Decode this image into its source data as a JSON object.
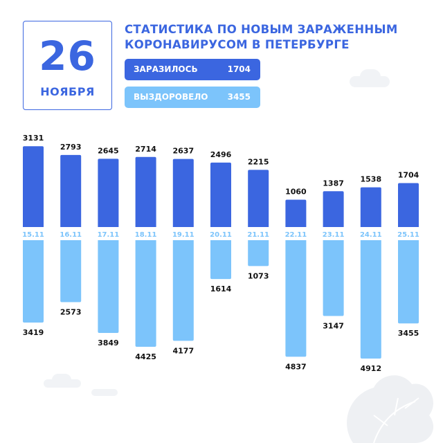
{
  "date": {
    "day": "26",
    "month": "НОЯБРЯ"
  },
  "title": "СТАТИСТИКА ПО НОВЫМ ЗАРАЖЕННЫМ КОРОНАВИРУСОМ В ПЕТЕРБУРГЕ",
  "legend": {
    "infected": {
      "label": "ЗАРАЗИЛОСЬ",
      "value": "1704"
    },
    "recovered": {
      "label": "ВЫЗДОРОВЕЛО",
      "value": "3455"
    }
  },
  "colors": {
    "infected": "#3b66e0",
    "recovered": "#7cc4fb",
    "date_label": "#3b66e0",
    "text": "#111111"
  },
  "chart_data": {
    "type": "bar",
    "categories": [
      "15.11",
      "16.11",
      "17.11",
      "18.11",
      "19.11",
      "20.11",
      "21.11",
      "22.11",
      "23.11",
      "24.11",
      "25.11"
    ],
    "series": [
      {
        "name": "ЗАРАЗИЛОСЬ",
        "direction": "up",
        "values": [
          3131,
          2793,
          2645,
          2714,
          2637,
          2496,
          2215,
          1060,
          1387,
          1538,
          1704
        ]
      },
      {
        "name": "ВЫЗДОРОВЕЛО",
        "direction": "down",
        "values": [
          3419,
          2573,
          3849,
          4425,
          4177,
          1614,
          1073,
          4837,
          3147,
          4912,
          3455
        ]
      }
    ],
    "layout": "diverging columns: infected above date row, recovered below"
  }
}
